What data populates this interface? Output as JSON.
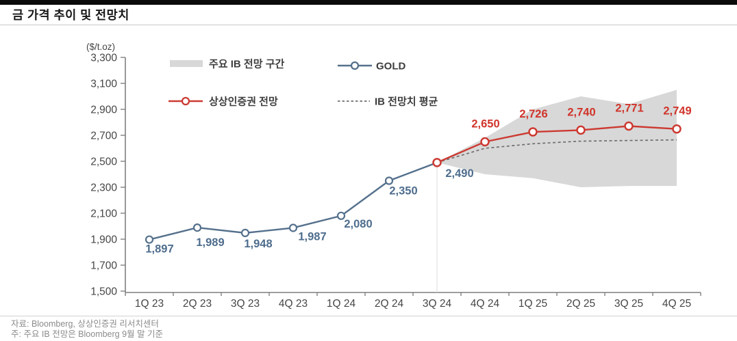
{
  "page": {
    "title": "금 가격 추이 및 전망치",
    "footer": {
      "source": "자료: Bloomberg, 상상인증권 리서치센터",
      "note": "주: 주요 IB 전망은 Bloomberg 9월 말 기준"
    }
  },
  "chart_data": {
    "type": "line",
    "title": "금 가격 추이 및 전망치",
    "unit_label": "($/t.oz)",
    "ylabel": "",
    "xlabel": "",
    "ylim": [
      1500,
      3300
    ],
    "ytick_step": 200,
    "grid": false,
    "legend_position": "top-inside",
    "categories": [
      "1Q 23",
      "2Q 23",
      "3Q 23",
      "4Q 23",
      "1Q 24",
      "2Q 24",
      "3Q 24",
      "4Q 24",
      "1Q 25",
      "2Q 25",
      "3Q 25",
      "4Q 25"
    ],
    "forecast_start_index": 6,
    "legend": [
      {
        "label": "주요 IB 전망 구간",
        "type": "band",
        "color": "#d8d8d8"
      },
      {
        "label": "GOLD",
        "type": "line-marker",
        "color": "#54708c"
      },
      {
        "label": "상상인증권 전망",
        "type": "line-marker",
        "color": "#cc3a32"
      },
      {
        "label": "IB 전망치 평균",
        "type": "dashed",
        "color": "#6e6e6e"
      }
    ],
    "series": [
      {
        "role": "gold",
        "name": "GOLD",
        "color": "#54708c",
        "start_index": 0,
        "values": [
          1897,
          1989,
          1948,
          1987,
          2080,
          2350,
          2490
        ],
        "labels": [
          "1,897",
          "1,989",
          "1,948",
          "1,987",
          "2,080",
          "2,350",
          "2,490"
        ],
        "label_color": "#4e6d8d"
      },
      {
        "role": "forecast",
        "name": "상상인증권 전망",
        "color": "#cc3a32",
        "start_index": 6,
        "values": [
          2490,
          2650,
          2726,
          2740,
          2771,
          2749
        ],
        "labels": [
          null,
          "2,650",
          "2,726",
          "2,740",
          "2,771",
          "2,749"
        ],
        "label_color": "#d0352b"
      },
      {
        "role": "ib_average",
        "name": "IB 전망치 평균",
        "color": "#6e6e6e",
        "start_index": 6,
        "values": [
          2490,
          2600,
          2635,
          2655,
          2660,
          2665
        ]
      },
      {
        "role": "ib_band",
        "name": "주요 IB 전망 구간",
        "color": "#d8d8d8",
        "start_index": 6,
        "upper": [
          2490,
          2680,
          2900,
          3000,
          2940,
          3050
        ],
        "lower": [
          2490,
          2400,
          2370,
          2300,
          2310,
          2310
        ]
      }
    ],
    "axis_color": "#7f7f7f",
    "tick_label_color": "#454545"
  }
}
